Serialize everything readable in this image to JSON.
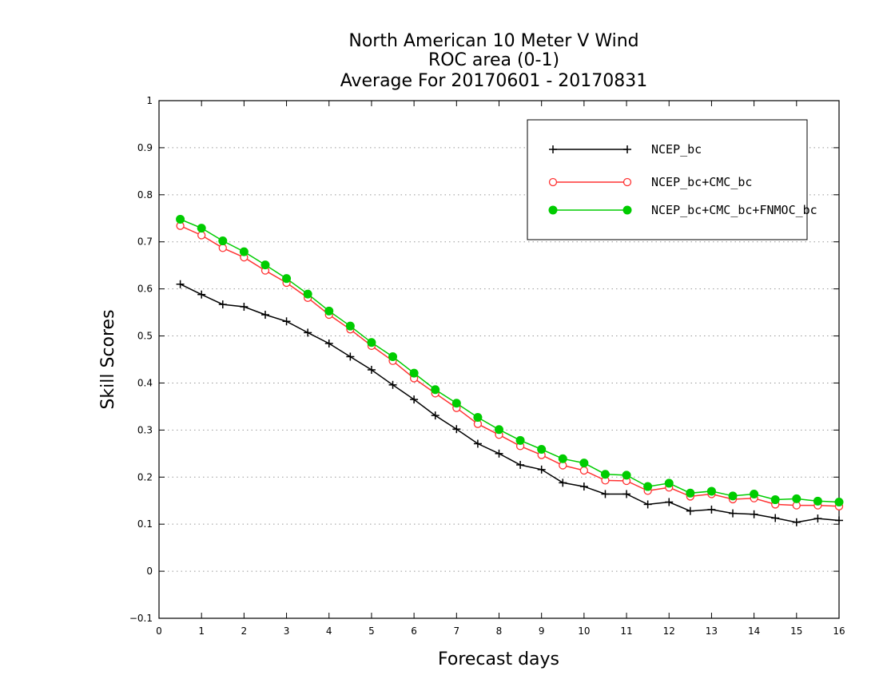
{
  "chart_data": {
    "type": "line",
    "title_lines": [
      "North American 10 Meter V Wind",
      "ROC area (0-1)",
      "Average For 20170601 - 20170831"
    ],
    "xlabel": "Forecast days",
    "ylabel": "Skill Scores",
    "xlim": [
      0,
      16
    ],
    "ylim": [
      -0.1,
      1
    ],
    "xticks": [
      "0",
      "1",
      "2",
      "3",
      "4",
      "5",
      "6",
      "7",
      "8",
      "9",
      "10",
      "11",
      "12",
      "13",
      "14",
      "15",
      "16"
    ],
    "yticks": [
      "−0.1",
      "0",
      "0.1",
      "0.2",
      "0.3",
      "0.4",
      "0.5",
      "0.6",
      "0.7",
      "0.8",
      "0.9",
      "1"
    ],
    "grid": "horizontal dotted",
    "legend_position": "top-right",
    "x": [
      0.5,
      1,
      1.5,
      2,
      2.5,
      3,
      3.5,
      4,
      4.5,
      5,
      5.5,
      6,
      6.5,
      7,
      7.5,
      8,
      8.5,
      9,
      9.5,
      10,
      10.5,
      11,
      11.5,
      12,
      12.5,
      13,
      13.5,
      14,
      14.5,
      15,
      15.5,
      16
    ],
    "series": [
      {
        "name": "NCEP_bc",
        "color": "#000000",
        "marker": "plus",
        "values": [
          0.61,
          0.588,
          0.567,
          0.562,
          0.545,
          0.531,
          0.507,
          0.484,
          0.456,
          0.428,
          0.396,
          0.365,
          0.331,
          0.302,
          0.271,
          0.25,
          0.226,
          0.216,
          0.188,
          0.18,
          0.164,
          0.164,
          0.142,
          0.147,
          0.128,
          0.131,
          0.123,
          0.121,
          0.113,
          0.104,
          0.112,
          0.108
        ]
      },
      {
        "name": "NCEP_bc+CMC_bc",
        "color": "#ff3333",
        "marker": "open-circle",
        "values": [
          0.734,
          0.714,
          0.687,
          0.667,
          0.639,
          0.613,
          0.581,
          0.545,
          0.514,
          0.479,
          0.447,
          0.41,
          0.378,
          0.347,
          0.313,
          0.29,
          0.266,
          0.247,
          0.225,
          0.214,
          0.193,
          0.192,
          0.171,
          0.178,
          0.159,
          0.164,
          0.153,
          0.155,
          0.142,
          0.14,
          0.14,
          0.138
        ]
      },
      {
        "name": "NCEP_bc+CMC_bc+FNMOC_bc",
        "color": "#00cc00",
        "marker": "filled-circle",
        "values": [
          0.748,
          0.729,
          0.702,
          0.679,
          0.651,
          0.622,
          0.589,
          0.553,
          0.521,
          0.486,
          0.456,
          0.421,
          0.386,
          0.357,
          0.327,
          0.301,
          0.278,
          0.259,
          0.239,
          0.23,
          0.206,
          0.204,
          0.18,
          0.187,
          0.166,
          0.17,
          0.16,
          0.164,
          0.152,
          0.154,
          0.149,
          0.147
        ]
      }
    ]
  }
}
